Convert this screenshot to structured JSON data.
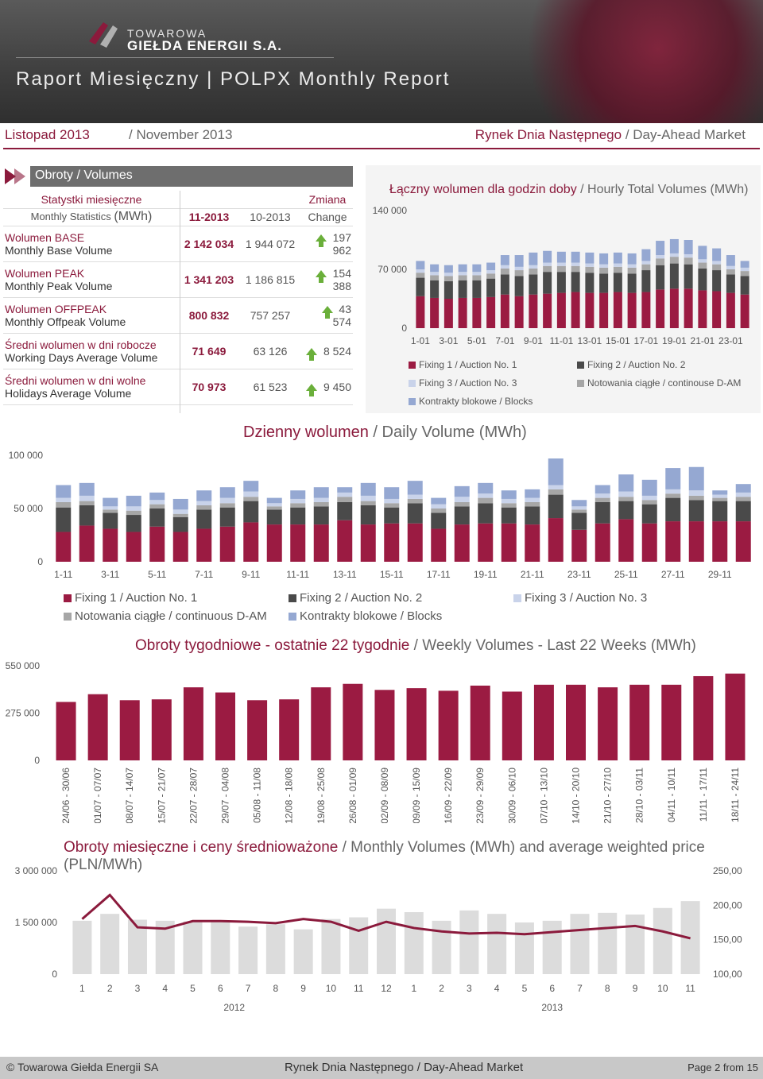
{
  "header": {
    "logo_line1": "TOWAROWA",
    "logo_line2": "GIEŁDA ENERGII S.A.",
    "title": "Raport Miesięczny | POLPX Monthly Report",
    "period_pl": "Listopad 2013",
    "period_en": "/ November 2013",
    "market_pl": "Rynek Dnia Następnego",
    "market_en": "/ Day-Ahead Market"
  },
  "volumes": {
    "section_title": "Obroty / Volumes",
    "col_stat_pl": "Statystki miesięczne",
    "col_stat_en": "Monthly Statistics",
    "col_unit": "(MWh)",
    "col_cur": "11-2013",
    "col_prev": "10-2013",
    "col_change_pl": "Zmiana",
    "col_change_en": "Change",
    "rows": [
      {
        "pl": "Wolumen BASE",
        "en": "Monthly Base Volume",
        "cur": "2 142 034",
        "prev": "1 944 072",
        "change": "197 962"
      },
      {
        "pl": "Wolumen PEAK",
        "en": "Monthly Peak Volume",
        "cur": "1 341 203",
        "prev": "1 186 815",
        "change": "154 388"
      },
      {
        "pl": "Wolumen OFFPEAK",
        "en": "Monthly Offpeak Volume",
        "cur": "800 832",
        "prev": "757 257",
        "change": "43 574"
      },
      {
        "pl": "Średni wolumen w dni robocze",
        "en": "Working Days Average Volume",
        "cur": "71 649",
        "prev": "63 126",
        "change": "8 524"
      },
      {
        "pl": "Średni wolumen w dni wolne",
        "en": "Holidays Average Volume",
        "cur": "70 973",
        "prev": "61 523",
        "change": "9 450"
      }
    ]
  },
  "legend": {
    "f1": "Fixing 1 / Auction No. 1",
    "f2": "Fixing 2 / Auction No. 2",
    "f3": "Fixing 3 / Auction No. 3",
    "cont": "Notowania ciągłe / continouse D-AM",
    "cont_daily": "Notowania ciągłe / continuous D-AM",
    "blocks": "Kontrakty blokowe / Blocks"
  },
  "colors": {
    "f1": "#9b1b42",
    "f2": "#4a4a4a",
    "f3": "#c9d3ea",
    "cont": "#a6a6a6",
    "blocks": "#95a8d2",
    "line": "#8b1a3c"
  },
  "chart_data": [
    {
      "id": "hourly",
      "type": "bar",
      "title_pl": "Łączny wolumen dla godzin doby",
      "title_en": "/ Hourly Total Volumes (MWh)",
      "ylim": [
        0,
        140000
      ],
      "yticks": [
        "140 000",
        "70 000",
        "0"
      ],
      "xtick_labels": [
        "1-01",
        "3-01",
        "5-01",
        "7-01",
        "9-01",
        "11-01",
        "13-01",
        "15-01",
        "17-01",
        "19-01",
        "21-01",
        "23-01"
      ],
      "series": [
        {
          "name": "f1",
          "values": [
            38000,
            36000,
            35000,
            36000,
            36000,
            37000,
            40000,
            38000,
            40000,
            41000,
            42000,
            43000,
            42000,
            42000,
            43000,
            42000,
            43000,
            46000,
            47000,
            47000,
            45000,
            44000,
            42000,
            40000
          ]
        },
        {
          "name": "f2",
          "values": [
            22000,
            21000,
            21000,
            21000,
            21000,
            22000,
            24000,
            24000,
            24000,
            26000,
            25000,
            24000,
            24000,
            23000,
            23000,
            23000,
            26000,
            29000,
            30000,
            29000,
            26000,
            25000,
            22000,
            22000
          ]
        },
        {
          "name": "cont",
          "values": [
            6000,
            6000,
            6000,
            6000,
            6000,
            6000,
            7000,
            7000,
            7000,
            7000,
            7000,
            7000,
            7000,
            7000,
            7000,
            7000,
            7000,
            8000,
            8000,
            8000,
            7000,
            7000,
            6000,
            6000
          ]
        },
        {
          "name": "f3",
          "values": [
            4000,
            4000,
            4000,
            4000,
            4000,
            4000,
            4000,
            4000,
            4000,
            4000,
            4000,
            4000,
            4000,
            4000,
            4000,
            4000,
            4000,
            4000,
            4000,
            4000,
            4000,
            4000,
            4000,
            4000
          ]
        },
        {
          "name": "blocks",
          "values": [
            10000,
            9000,
            9000,
            9000,
            9000,
            9000,
            12000,
            14000,
            15000,
            14000,
            13000,
            13000,
            13000,
            13000,
            13000,
            13000,
            14000,
            17000,
            17000,
            17000,
            16000,
            15000,
            13000,
            8000
          ]
        }
      ]
    },
    {
      "id": "daily",
      "type": "bar",
      "title_pl": "Dzienny wolumen",
      "title_en": "/ Daily Volume (MWh)",
      "ylim": [
        0,
        100000
      ],
      "yticks": [
        "100 000",
        "50 000",
        "0"
      ],
      "xtick_labels": [
        "1-11",
        "3-11",
        "5-11",
        "7-11",
        "9-11",
        "11-11",
        "13-11",
        "15-11",
        "17-11",
        "19-11",
        "21-11",
        "23-11",
        "25-11",
        "27-11",
        "29-11"
      ],
      "series": [
        {
          "name": "f1",
          "values": [
            28000,
            34000,
            31000,
            28000,
            33000,
            28000,
            31000,
            33000,
            37000,
            35000,
            35000,
            35000,
            39000,
            35000,
            36000,
            36000,
            31000,
            35000,
            36000,
            36000,
            35000,
            41000,
            30000,
            36000,
            40000,
            36000,
            38000,
            38000,
            38000,
            38000
          ]
        },
        {
          "name": "f2",
          "values": [
            23000,
            19000,
            15000,
            16000,
            17000,
            14000,
            18000,
            18000,
            20000,
            14000,
            16000,
            17000,
            17000,
            18000,
            15000,
            19000,
            15000,
            17000,
            19000,
            15000,
            17000,
            22000,
            16000,
            20000,
            17000,
            18000,
            22000,
            20000,
            19000,
            19000
          ]
        },
        {
          "name": "cont",
          "values": [
            5000,
            4000,
            3000,
            4000,
            4000,
            3000,
            4000,
            4000,
            4000,
            3000,
            4000,
            4000,
            5000,
            4000,
            4000,
            4000,
            4000,
            4000,
            5000,
            4000,
            4000,
            5000,
            3000,
            4000,
            4000,
            4000,
            4000,
            4000,
            3000,
            4000
          ]
        },
        {
          "name": "f3",
          "values": [
            4000,
            5000,
            3000,
            4000,
            4000,
            4000,
            4000,
            5000,
            5000,
            3000,
            4000,
            4000,
            4000,
            5000,
            4000,
            4000,
            4000,
            5000,
            4000,
            4000,
            4000,
            4000,
            3000,
            4000,
            5000,
            4000,
            4000,
            5000,
            3000,
            4000
          ]
        },
        {
          "name": "blocks",
          "values": [
            12000,
            12000,
            8000,
            10000,
            7000,
            10000,
            10000,
            10000,
            10000,
            5000,
            8000,
            10000,
            5000,
            12000,
            11000,
            13000,
            6000,
            10000,
            10000,
            8000,
            8000,
            25000,
            6000,
            8000,
            16000,
            15000,
            20000,
            22000,
            4000,
            8000
          ]
        }
      ]
    },
    {
      "id": "weekly",
      "type": "bar",
      "title_pl": "Obroty tygodniowe - ostatnie 22 tygodnie",
      "title_en": "/ Weekly Volumes - Last 22 Weeks (MWh)",
      "ylim": [
        0,
        550000
      ],
      "yticks": [
        "550 000",
        "275 000",
        "0"
      ],
      "categories": [
        "24/06 - 30/06",
        "01/07 - 07/07",
        "08/07 - 14/07",
        "15/07 - 21/07",
        "22/07 - 28/07",
        "29/07 - 04/08",
        "05/08 - 11/08",
        "12/08 - 18/08",
        "19/08 - 25/08",
        "26/08 - 01/09",
        "02/09 - 08/09",
        "09/09 - 15/09",
        "16/09 - 22/09",
        "23/09 - 29/09",
        "30/09 - 06/10",
        "07/10 - 13/10",
        "14/10 - 20/10",
        "21/10 - 27/10",
        "28/10 - 03/11",
        "04/11 - 10/11",
        "11/11 - 17/11",
        "18/11 - 24/11"
      ],
      "values": [
        340000,
        385000,
        350000,
        355000,
        425000,
        395000,
        350000,
        355000,
        425000,
        445000,
        410000,
        420000,
        405000,
        435000,
        400000,
        440000,
        440000,
        425000,
        440000,
        440000,
        490000,
        505000
      ]
    },
    {
      "id": "monthly",
      "type": "bar",
      "title_pl": "Obroty miesięczne i ceny średnioważone",
      "title_en": "/ Monthly Volumes (MWh) and average weighted price (PLN/MWh)",
      "ylim": [
        0,
        3000000
      ],
      "yticks": [
        "3 000 000",
        "1 500 000",
        "0"
      ],
      "y2lim": [
        100,
        250
      ],
      "y2ticks": [
        "250,00",
        "200,00",
        "150,00",
        "100,00"
      ],
      "categories": [
        "1",
        "2",
        "3",
        "4",
        "5",
        "6",
        "7",
        "8",
        "9",
        "10",
        "11",
        "12",
        "1",
        "2",
        "3",
        "4",
        "5",
        "6",
        "7",
        "8",
        "9",
        "10",
        "11"
      ],
      "groups": [
        {
          "label": "2012",
          "span": 12
        },
        {
          "label": "2013",
          "span": 11
        }
      ],
      "values": [
        1550000,
        1750000,
        1580000,
        1550000,
        1530000,
        1520000,
        1380000,
        1450000,
        1300000,
        1600000,
        1650000,
        1900000,
        1800000,
        1550000,
        1850000,
        1750000,
        1500000,
        1550000,
        1750000,
        1780000,
        1730000,
        1920000,
        2120000
      ],
      "price": [
        180,
        215,
        168,
        166,
        177,
        177,
        176,
        174,
        180,
        176,
        163,
        176,
        167,
        162,
        159,
        160,
        158,
        161,
        164,
        167,
        170,
        162,
        152
      ]
    }
  ],
  "footer": {
    "left": "© Towarowa Giełda Energii SA",
    "center": "Rynek Dnia Następnego / Day-Ahead Market",
    "right": "Page 2 from 15"
  }
}
